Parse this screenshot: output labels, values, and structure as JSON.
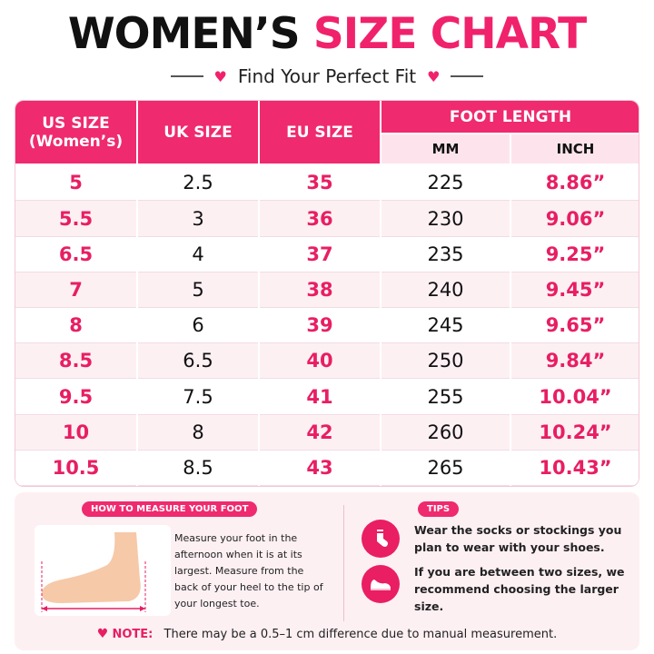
{
  "title": {
    "part1": "WOMEN’S",
    "part2": "SIZE CHART"
  },
  "subtitle": "Find Your Perfect Fit",
  "table": {
    "headers": {
      "us_line1": "US SIZE",
      "us_line2": "(Women’s)",
      "uk": "UK SIZE",
      "eu": "EU SIZE",
      "foot_length": "FOOT LENGTH",
      "mm": "MM",
      "inch": "INCH"
    },
    "rows": [
      {
        "us": "5",
        "uk": "2.5",
        "eu": "35",
        "mm": "225",
        "inch": "8.86”"
      },
      {
        "us": "5.5",
        "uk": "3",
        "eu": "36",
        "mm": "230",
        "inch": "9.06”"
      },
      {
        "us": "6.5",
        "uk": "4",
        "eu": "37",
        "mm": "235",
        "inch": "9.25”"
      },
      {
        "us": "7",
        "uk": "5",
        "eu": "38",
        "mm": "240",
        "inch": "9.45”"
      },
      {
        "us": "8",
        "uk": "6",
        "eu": "39",
        "mm": "245",
        "inch": "9.65”"
      },
      {
        "us": "8.5",
        "uk": "6.5",
        "eu": "40",
        "mm": "250",
        "inch": "9.84”"
      },
      {
        "us": "9.5",
        "uk": "7.5",
        "eu": "41",
        "mm": "255",
        "inch": "10.04”"
      },
      {
        "us": "10",
        "uk": "8",
        "eu": "42",
        "mm": "260",
        "inch": "10.24”"
      },
      {
        "us": "10.5",
        "uk": "8.5",
        "eu": "43",
        "mm": "265",
        "inch": "10.43”"
      }
    ]
  },
  "measure": {
    "label": "HOW TO MEASURE YOUR FOOT",
    "text": "Measure your foot in the afternoon when it is at its largest. Measure from the back of your heel to the tip of your longest toe."
  },
  "tips": {
    "label": "TIPS",
    "items": [
      {
        "icon": "sock-icon",
        "text": "Wear the socks or stockings you plan to wear with your shoes."
      },
      {
        "icon": "shoe-icon",
        "text": "If you are between two sizes, we recommend choosing the larger size."
      }
    ]
  },
  "note": {
    "label": "NOTE:",
    "text": "There may be a 0.5–1 cm difference due to manual measurement."
  },
  "colors": {
    "accent": "#ef2a6e",
    "accent_dark": "#e81e63",
    "row_alt": "#fdf0f3",
    "sub_header": "#fde4ec"
  }
}
